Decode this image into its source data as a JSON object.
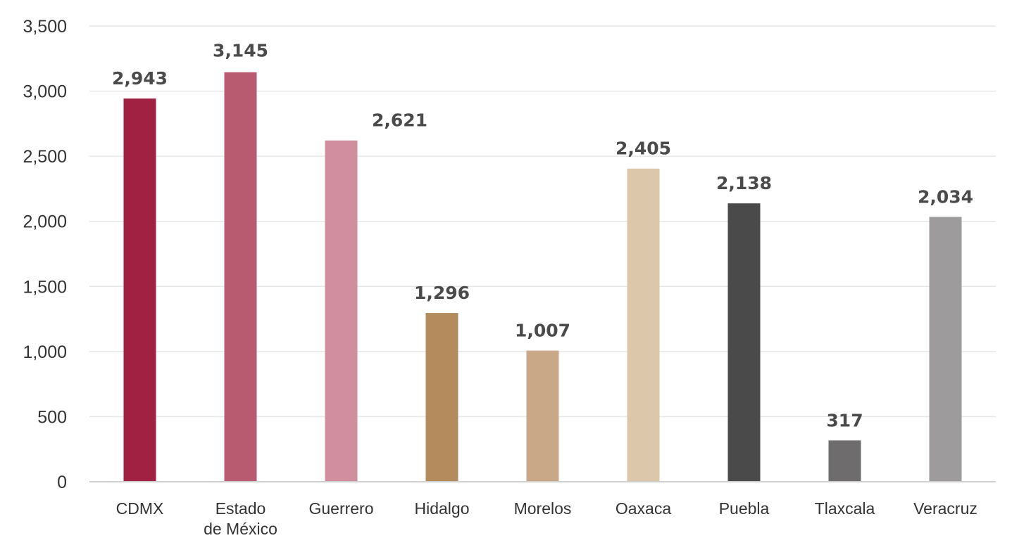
{
  "chart_data": {
    "type": "bar",
    "categories": [
      "CDMX",
      "Estado de México",
      "Guerrero",
      "Hidalgo",
      "Morelos",
      "Oaxaca",
      "Puebla",
      "Tlaxcala",
      "Veracruz"
    ],
    "category_lines": [
      [
        "CDMX"
      ],
      [
        "Estado",
        "de México"
      ],
      [
        "Guerrero"
      ],
      [
        "Hidalgo"
      ],
      [
        "Morelos"
      ],
      [
        "Oaxaca"
      ],
      [
        "Puebla"
      ],
      [
        "Tlaxcala"
      ],
      [
        "Veracruz"
      ]
    ],
    "values": [
      2943,
      3145,
      2621,
      1296,
      1007,
      2405,
      2138,
      317,
      2034
    ],
    "data_labels": [
      "2,943",
      "3,145",
      "2,621",
      "1,296",
      "1,007",
      "2,405",
      "2,138",
      "317",
      "2,034"
    ],
    "colors": [
      "#A12142",
      "#B85A70",
      "#D08E9E",
      "#B38B5C",
      "#C8A886",
      "#DDC7AA",
      "#4B4A4B",
      "#6E6C6D",
      "#9D9B9C"
    ],
    "y_ticks": [
      0,
      500,
      1000,
      1500,
      2000,
      2500,
      3000,
      3500
    ],
    "y_tick_labels": [
      "0",
      "500",
      "1,000",
      "1,500",
      "2,000",
      "2,500",
      "3,000",
      "3,500"
    ],
    "ylim": [
      0,
      3500
    ],
    "grid": true,
    "legend": "none",
    "title": "",
    "xlabel": "",
    "ylabel": ""
  }
}
